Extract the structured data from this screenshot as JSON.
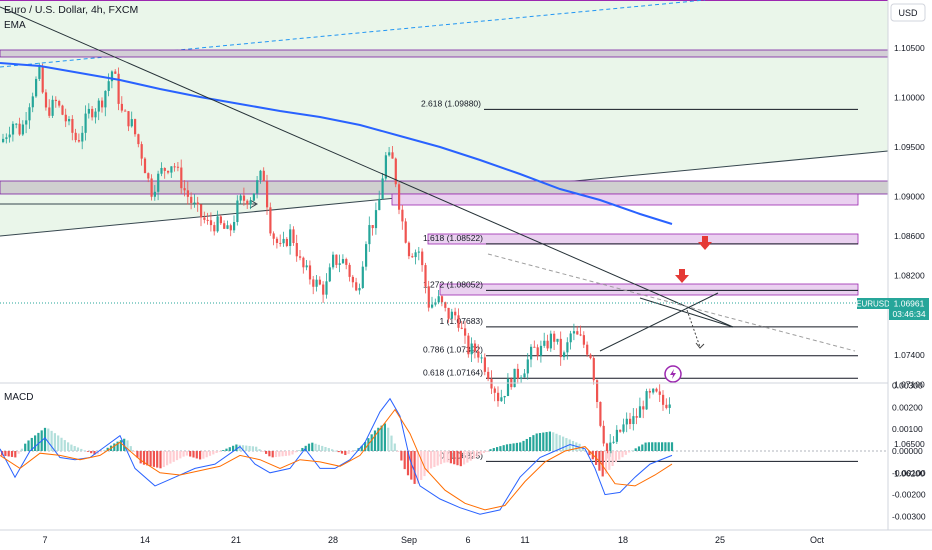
{
  "header": {
    "symbol_title": "Euro / U.S. Dollar, 4h, FXCM",
    "indicator_label": "EMA",
    "currency_button": "USD",
    "macd_label": "MACD"
  },
  "price_scale": {
    "labels": [
      "1.10500",
      "1.10000",
      "1.09500",
      "1.09000",
      "1.08600",
      "1.08200",
      "1.07800",
      "1.07400",
      "1.07100",
      "1.06500",
      "1.06200"
    ],
    "values": [
      1.105,
      1.1,
      1.095,
      1.09,
      1.086,
      1.082,
      1.078,
      1.074,
      1.071,
      1.065,
      1.062
    ]
  },
  "macd_scale": {
    "labels": [
      "0.00300",
      "0.00200",
      "0.00100",
      "0.00000",
      "-0.00100",
      "-0.00200",
      "-0.00300"
    ],
    "values": [
      0.003,
      0.002,
      0.001,
      0,
      -0.001,
      -0.002,
      -0.003
    ]
  },
  "time_axis": {
    "labels": [
      "7",
      "14",
      "21",
      "28",
      "Sep",
      "6",
      "11",
      "18",
      "25",
      "Oct"
    ]
  },
  "price_badge": {
    "symbol": "EURUSD",
    "price": "1.06961",
    "countdown": "03:46:34"
  },
  "fib_levels": [
    {
      "label": "2.618 (1.09880)",
      "value": 1.0988
    },
    {
      "label": "1.618 (1.08522)",
      "value": 1.08522
    },
    {
      "label": "1.272 (1.08052)",
      "value": 1.08052
    },
    {
      "label": "1 (1.07683)",
      "value": 1.07683
    },
    {
      "label": "0.786 (1.07392)",
      "value": 1.07392
    },
    {
      "label": "0.618 (1.07164)",
      "value": 1.07164
    },
    {
      "label": "0 (1.06325)",
      "value": 1.06325
    }
  ],
  "colors": {
    "bull": "#26a69a",
    "bear": "#ef5350",
    "ema": "#2962ff",
    "macd_line": "#2962ff",
    "signal_line": "#ff6d00",
    "zone_fill": "#e1bee7",
    "zone_border": "#9c27b0",
    "band_fill": "#e8f5e9",
    "resistance_box": "#cfcfcf",
    "badge": "#26a69a",
    "arrow": "#e53935"
  },
  "chart_data": {
    "type": "candlestick",
    "symbol": "EURUSD",
    "timeframe": "4h",
    "ylim": [
      1.0605,
      1.1105
    ],
    "close_series_daily": [
      {
        "x": "Aug 3",
        "close": 1.1005
      },
      {
        "x": "Aug 4",
        "close": 1.0995
      },
      {
        "x": "Aug 7",
        "close": 1.1
      },
      {
        "x": "Aug 8",
        "close": 1.096
      },
      {
        "x": "Aug 9",
        "close": 1.0975
      },
      {
        "x": "Aug 10",
        "close": 1.1015
      },
      {
        "x": "Aug 11",
        "close": 1.095
      },
      {
        "x": "Aug 14",
        "close": 1.0905
      },
      {
        "x": "Aug 15",
        "close": 1.0905
      },
      {
        "x": "Aug 16",
        "close": 1.0875
      },
      {
        "x": "Aug 17",
        "close": 1.0875
      },
      {
        "x": "Aug 18",
        "close": 1.0872
      },
      {
        "x": "Aug 21",
        "close": 1.0895
      },
      {
        "x": "Aug 22",
        "close": 1.0845
      },
      {
        "x": "Aug 23",
        "close": 1.0815
      },
      {
        "x": "Aug 24",
        "close": 1.087
      },
      {
        "x": "Aug 25",
        "close": 1.0795
      },
      {
        "x": "Aug 28",
        "close": 1.082
      },
      {
        "x": "Aug 29",
        "close": 1.093
      },
      {
        "x": "Aug 30",
        "close": 1.091
      },
      {
        "x": "Aug 31",
        "close": 1.0855
      },
      {
        "x": "Sep 1",
        "close": 1.0775
      },
      {
        "x": "Sep 4",
        "close": 1.0795
      },
      {
        "x": "Sep 5",
        "close": 1.0725
      },
      {
        "x": "Sep 6",
        "close": 1.0725
      },
      {
        "x": "Sep 7",
        "close": 1.07
      },
      {
        "x": "Sep 8",
        "close": 1.07
      },
      {
        "x": "Sep 11",
        "close": 1.075
      },
      {
        "x": "Sep 12",
        "close": 1.0765
      },
      {
        "x": "Sep 13",
        "close": 1.073
      },
      {
        "x": "Sep 14",
        "close": 1.065
      },
      {
        "x": "Sep 15",
        "close": 1.066
      },
      {
        "x": "Sep 18",
        "close": 1.069
      },
      {
        "x": "Sep 19",
        "close": 1.0705
      },
      {
        "x": "Sep 20",
        "close": 1.0696
      }
    ],
    "last_price": 1.06961,
    "macd": {
      "range": [
        -0.0031,
        0.0031
      ],
      "histogram_sign_pattern": "positive early August, negative mid August, positive late August, negative early September, positive mid September, negative September 14-18, positive at the end"
    }
  }
}
